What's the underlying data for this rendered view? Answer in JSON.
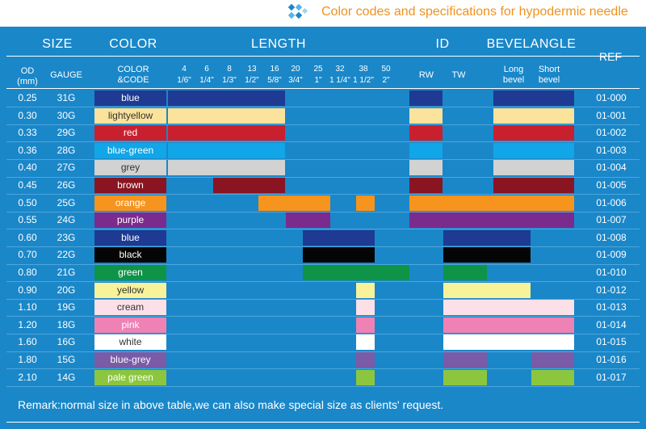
{
  "header": {
    "title": "Color codes and specifications for hypodermic needle",
    "title_color": "#f0921e",
    "icon": "diamond-cluster-icon"
  },
  "columns": {
    "size": "SIZE",
    "color": "COLOR",
    "length": "LENGTH",
    "id": "ID",
    "bevel": "BEVELANGLE",
    "ref": "REF",
    "od_line1": "OD",
    "od_line2": "(mm)",
    "gauge": "GAUGE",
    "color_code_line1": "COLOR",
    "color_code_line2": "&CODE",
    "rw": "RW",
    "tw": "TW",
    "long_bevel_line1": "Long",
    "long_bevel_line2": "bevel",
    "short_bevel_line1": "Short",
    "short_bevel_line2": "bevel"
  },
  "lengths": [
    {
      "mm": "4",
      "inch": "1/6\""
    },
    {
      "mm": "6",
      "inch": "1/4\""
    },
    {
      "mm": "8",
      "inch": "1/3\""
    },
    {
      "mm": "13",
      "inch": "1/2\""
    },
    {
      "mm": "16",
      "inch": "5/8\""
    },
    {
      "mm": "20",
      "inch": "3/4\""
    },
    {
      "mm": "25",
      "inch": "1\""
    },
    {
      "mm": "32",
      "inch": "1 1/4\""
    },
    {
      "mm": "38",
      "inch": "1 1/2\""
    },
    {
      "mm": "50",
      "inch": "2\""
    }
  ],
  "rows": [
    {
      "od": "0.25",
      "gauge": "31G",
      "color": "blue",
      "hex": "#1f3a93",
      "text": "#ffffff",
      "ref": "01-000"
    },
    {
      "od": "0.30",
      "gauge": "30G",
      "color": "lightyellow",
      "hex": "#fbe39b",
      "text": "#333333",
      "ref": "01-001"
    },
    {
      "od": "0.33",
      "gauge": "29G",
      "color": "red",
      "hex": "#c8202f",
      "text": "#ffffff",
      "ref": "01-002"
    },
    {
      "od": "0.36",
      "gauge": "28G",
      "color": "blue-green",
      "hex": "#10a6e8",
      "text": "#ffffff",
      "ref": "01-003"
    },
    {
      "od": "0.40",
      "gauge": "27G",
      "color": "grey",
      "hex": "#d2d2d2",
      "text": "#333333",
      "ref": "01-004"
    },
    {
      "od": "0.45",
      "gauge": "26G",
      "color": "brown",
      "hex": "#8a1522",
      "text": "#ffffff",
      "ref": "01-005"
    },
    {
      "od": "0.50",
      "gauge": "25G",
      "color": "orange",
      "hex": "#f7941d",
      "text": "#ffffff",
      "ref": "01-006"
    },
    {
      "od": "0.55",
      "gauge": "24G",
      "color": "purple",
      "hex": "#7b2a8e",
      "text": "#ffffff",
      "ref": "01-007"
    },
    {
      "od": "0.60",
      "gauge": "23G",
      "color": "blue",
      "hex": "#1f3a93",
      "text": "#ffffff",
      "ref": "01-008"
    },
    {
      "od": "0.70",
      "gauge": "22G",
      "color": "black",
      "hex": "#050505",
      "text": "#ffffff",
      "ref": "01-009"
    },
    {
      "od": "0.80",
      "gauge": "21G",
      "color": "green",
      "hex": "#0e9447",
      "text": "#ffffff",
      "ref": "01-010"
    },
    {
      "od": "0.90",
      "gauge": "20G",
      "color": "yellow",
      "hex": "#f8f29a",
      "text": "#333333",
      "ref": "01-012"
    },
    {
      "od": "1.10",
      "gauge": "19G",
      "color": "cream",
      "hex": "#fbe0e8",
      "text": "#333333",
      "ref": "01-013"
    },
    {
      "od": "1.20",
      "gauge": "18G",
      "color": "pink",
      "hex": "#ee82b5",
      "text": "#ffffff",
      "ref": "01-014"
    },
    {
      "od": "1.60",
      "gauge": "16G",
      "color": "white",
      "hex": "#ffffff",
      "text": "#333333",
      "ref": "01-015"
    },
    {
      "od": "1.80",
      "gauge": "15G",
      "color": "blue-grey",
      "hex": "#7a5ba8",
      "text": "#ffffff",
      "ref": "01-016"
    },
    {
      "od": "2.10",
      "gauge": "14G",
      "color": "pale green",
      "hex": "#8cc63f",
      "text": "#ffffff",
      "ref": "01-017"
    }
  ],
  "remark": "Remark:normal size in above table,we can also make special size as clients' request."
}
